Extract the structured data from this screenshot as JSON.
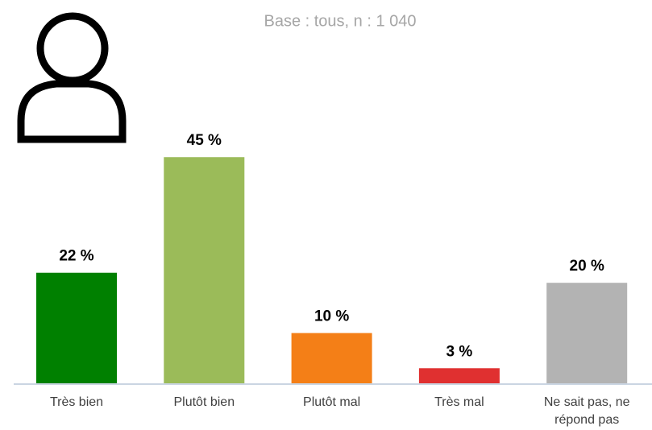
{
  "chart_data": {
    "type": "bar",
    "subtitle": "Base : tous, n : 1 040",
    "categories": [
      "Très bien",
      "Plutôt bien",
      "Plutôt mal",
      "Très mal",
      "Ne sait pas, ne répond pas"
    ],
    "values": [
      22,
      45,
      10,
      3,
      20
    ],
    "value_labels": [
      "22 %",
      "45 %",
      "10 %",
      "3 %",
      "20 %"
    ],
    "colors": [
      "#008000",
      "#9bbb59",
      "#f47f17",
      "#e03030",
      "#b3b3b3"
    ]
  }
}
